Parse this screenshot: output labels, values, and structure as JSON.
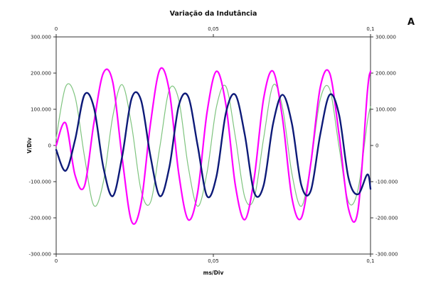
{
  "chart_data": {
    "type": "line",
    "title": "Variação da Indutância",
    "panel_label": "A",
    "xlabel": "ms/Div",
    "ylabel": "V/Div",
    "xlim": [
      0,
      0.1
    ],
    "ylim": [
      -300000,
      300000
    ],
    "x_ticks": [
      "0",
      "0,05",
      "0,1"
    ],
    "y_ticks": [
      "300.000",
      "200.000",
      "100.000",
      "0",
      "-100.000",
      "-200.000",
      "-300.000"
    ],
    "grid": false,
    "series": [
      {
        "color": "#7fc47f",
        "line_width": 1.2,
        "x": [
          0,
          0.003,
          0.006,
          0.009,
          0.012,
          0.015,
          0.018,
          0.021,
          0.024,
          0.027,
          0.03,
          0.033,
          0.036,
          0.039,
          0.042,
          0.045,
          0.048,
          0.051,
          0.054,
          0.057,
          0.06,
          0.063,
          0.066,
          0.069,
          0.072,
          0.075,
          0.078,
          0.081,
          0.084,
          0.087,
          0.09,
          0.093,
          0.096,
          0.099,
          0.1
        ],
        "values": [
          20000,
          162000,
          135000,
          -30000,
          -166000,
          -101000,
          80000,
          168000,
          55000,
          -124000,
          -157000,
          -3000,
          154000,
          126000,
          -58000,
          -168000,
          -74000,
          107000,
          163000,
          24000,
          -143000,
          -145000,
          20000,
          166000,
          105000,
          -78000,
          -168000,
          -51000,
          127000,
          156000,
          -4000,
          -156000,
          -123000,
          65000,
          107000
        ]
      },
      {
        "color": "#ff00ff",
        "line_width": 2.2,
        "x": [
          0,
          0.003,
          0.006,
          0.009,
          0.012,
          0.015,
          0.018,
          0.021,
          0.024,
          0.027,
          0.03,
          0.033,
          0.036,
          0.039,
          0.042,
          0.045,
          0.048,
          0.051,
          0.054,
          0.057,
          0.06,
          0.063,
          0.066,
          0.069,
          0.072,
          0.075,
          0.078,
          0.081,
          0.084,
          0.087,
          0.09,
          0.093,
          0.096,
          0.099,
          0.1
        ],
        "values": [
          0,
          62000,
          -82000,
          -112000,
          62000,
          200000,
          175000,
          -35000,
          -210000,
          -160000,
          60000,
          210000,
          150000,
          -78000,
          -205000,
          -130000,
          92000,
          205000,
          112000,
          -110000,
          -205000,
          -90000,
          130000,
          205000,
          75000,
          -145000,
          -200000,
          -50000,
          160000,
          200000,
          30000,
          -175000,
          -180000,
          148000,
          205000
        ]
      },
      {
        "color": "#0d1a78",
        "line_width": 2.4,
        "x": [
          0,
          0.003,
          0.006,
          0.009,
          0.012,
          0.015,
          0.018,
          0.021,
          0.024,
          0.027,
          0.03,
          0.033,
          0.036,
          0.039,
          0.042,
          0.045,
          0.048,
          0.051,
          0.054,
          0.057,
          0.06,
          0.063,
          0.066,
          0.069,
          0.072,
          0.075,
          0.078,
          0.081,
          0.084,
          0.087,
          0.09,
          0.093,
          0.096,
          0.099,
          0.1
        ],
        "values": [
          -12000,
          -70000,
          15000,
          140000,
          105000,
          -60000,
          -140000,
          -30000,
          130000,
          125000,
          -30000,
          -140000,
          -60000,
          110000,
          135000,
          0,
          -140000,
          -85000,
          90000,
          140000,
          30000,
          -130000,
          -110000,
          60000,
          140000,
          60000,
          -110000,
          -125000,
          30000,
          140000,
          85000,
          -90000,
          -135000,
          -80000,
          -120000
        ]
      }
    ]
  }
}
